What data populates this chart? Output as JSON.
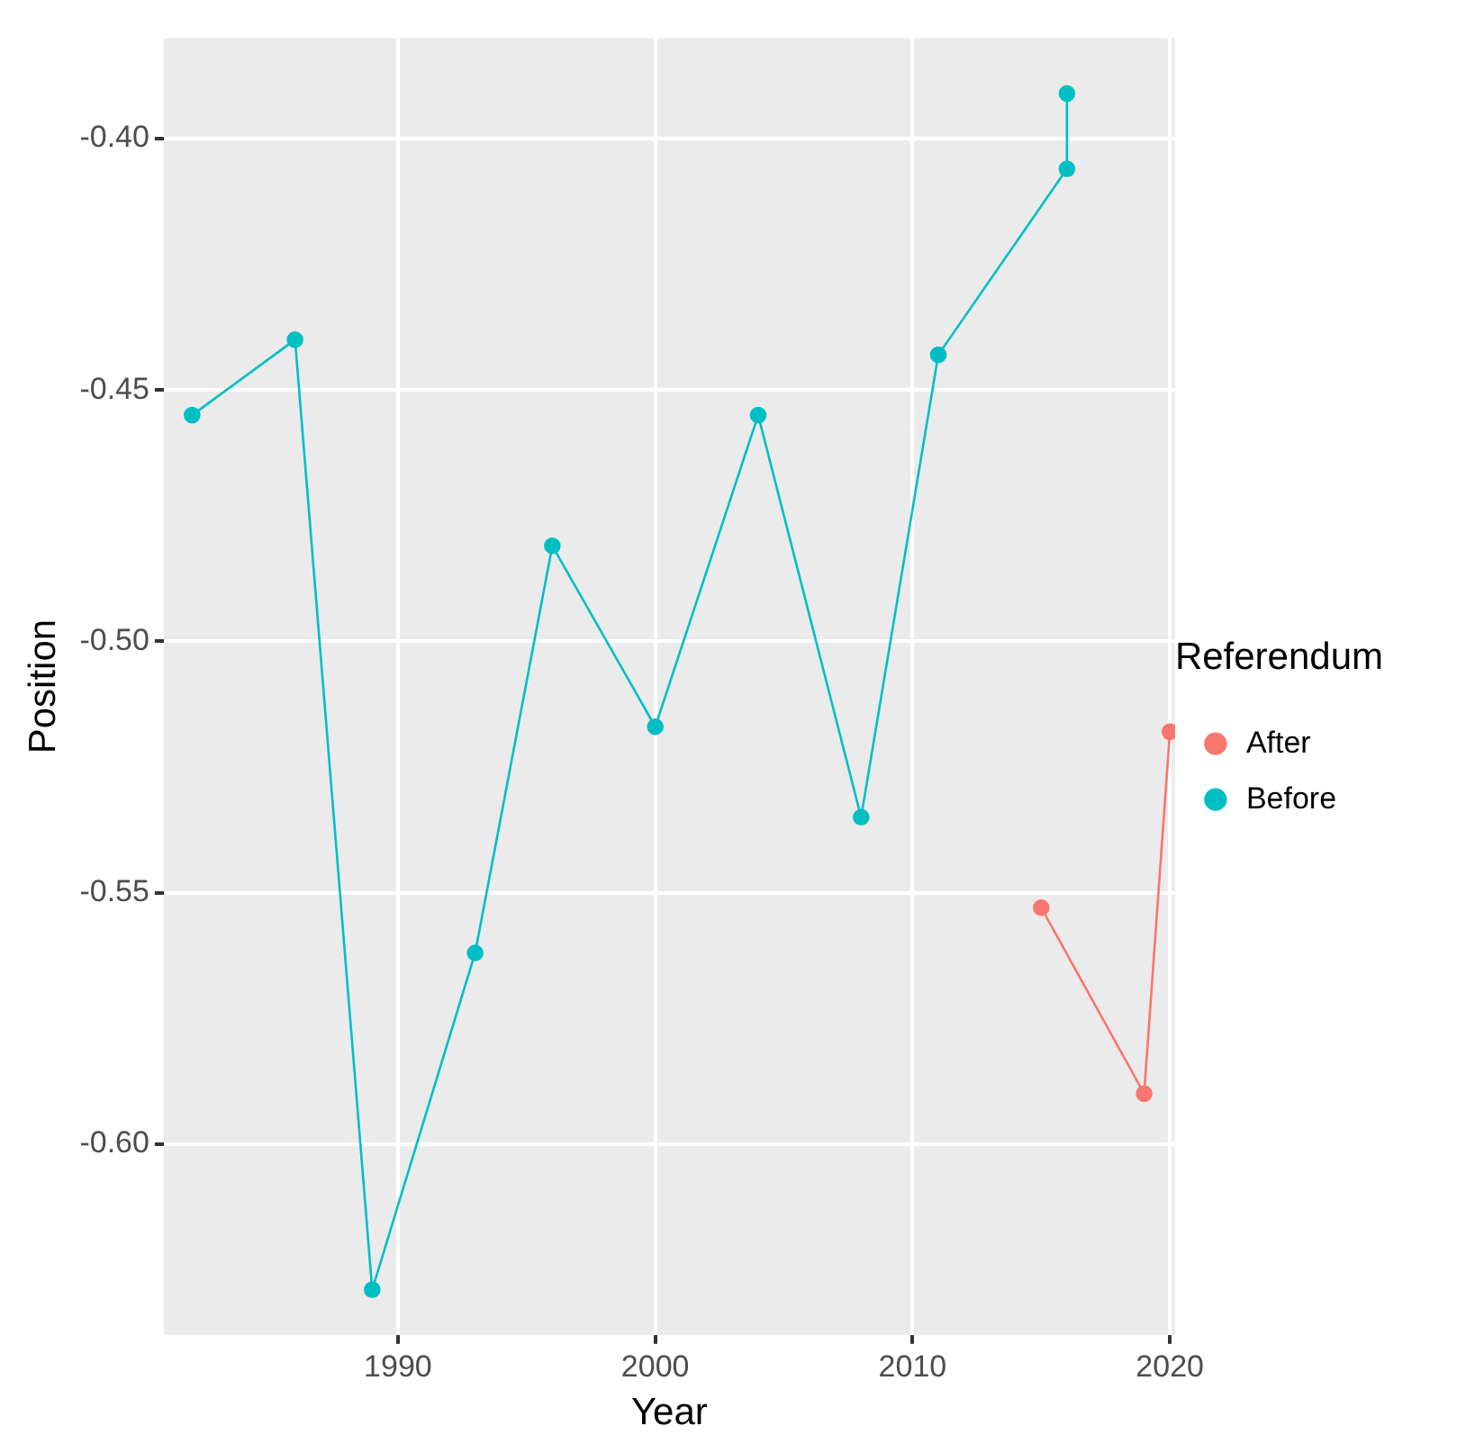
{
  "chart_data": {
    "type": "line",
    "xlabel": "Year",
    "ylabel": "Position",
    "legend_title": "Referendum",
    "series": [
      {
        "name": "After",
        "color": "#f8766d",
        "x": [
          2015,
          2019,
          2020
        ],
        "values": [
          -0.553,
          -0.59,
          -0.518
        ]
      },
      {
        "name": "Before",
        "color": "#00bfc4",
        "x": [
          1982,
          1986,
          1989,
          1993,
          1996,
          2000,
          2004,
          2008,
          2011,
          2016,
          2016
        ],
        "values": [
          -0.455,
          -0.44,
          -0.629,
          -0.562,
          -0.481,
          -0.517,
          -0.455,
          -0.535,
          -0.443,
          -0.406,
          -0.391
        ]
      }
    ],
    "xlim": [
      1980.9,
      2020.2
    ],
    "xticks": [
      1990,
      2000,
      2010,
      2020
    ],
    "ylim": [
      -0.638,
      -0.38
    ],
    "yticks": [
      {
        "value": -0.6,
        "label": "-0.60"
      },
      {
        "value": -0.55,
        "label": "-0.55"
      },
      {
        "value": -0.5,
        "label": "-0.50"
      },
      {
        "value": -0.45,
        "label": "-0.45"
      },
      {
        "value": -0.4,
        "label": "-0.40"
      }
    ],
    "grid": true,
    "legend": "right",
    "marker": "circle",
    "line_style": "solid"
  }
}
